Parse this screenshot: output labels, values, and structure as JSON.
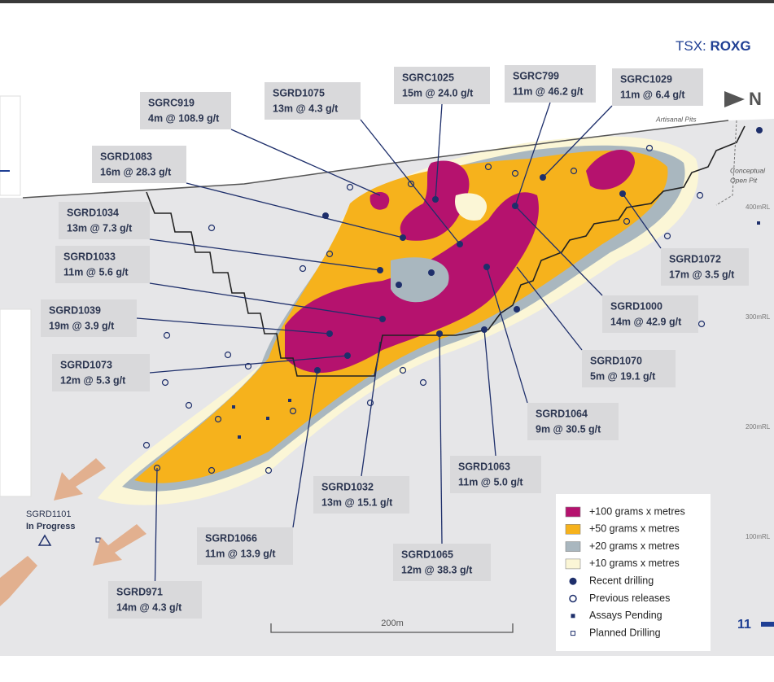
{
  "header": {
    "exchange": "TSX:",
    "ticker": "ROXG"
  },
  "north": "N",
  "annotations": {
    "pits": "Artisanal Pits",
    "open_pit": [
      "Conceptual",
      "Open Pit"
    ],
    "elevations": [
      "400mRL",
      "300mRL",
      "200mRL",
      "100mRL"
    ]
  },
  "in_progress": {
    "hole": "SGRD1101",
    "status": "In Progress"
  },
  "callouts": [
    {
      "hole": "SGRC919",
      "intercept": "4m @ 108.9 g/t"
    },
    {
      "hole": "SGRD1075",
      "intercept": "13m @ 4.3 g/t"
    },
    {
      "hole": "SGRC1025",
      "intercept": "15m @ 24.0 g/t"
    },
    {
      "hole": "SGRC799",
      "intercept": "11m @ 46.2 g/t"
    },
    {
      "hole": "SGRC1029",
      "intercept": "11m @ 6.4 g/t"
    },
    {
      "hole": "SGRD1083",
      "intercept": "16m @ 28.3 g/t"
    },
    {
      "hole": "SGRD1034",
      "intercept": "13m @ 7.3 g/t"
    },
    {
      "hole": "SGRD1033",
      "intercept": "11m @ 5.6 g/t"
    },
    {
      "hole": "SGRD1039",
      "intercept": "19m @ 3.9 g/t"
    },
    {
      "hole": "SGRD1073",
      "intercept": "12m @ 5.3 g/t"
    },
    {
      "hole": "SGRD1072",
      "intercept": "17m @ 3.5 g/t"
    },
    {
      "hole": "SGRD1000",
      "intercept": "14m @ 42.9 g/t"
    },
    {
      "hole": "SGRD1070",
      "intercept": "5m @ 19.1 g/t"
    },
    {
      "hole": "SGRD1064",
      "intercept": "9m @ 30.5 g/t"
    },
    {
      "hole": "SGRD1063",
      "intercept": "11m @ 5.0 g/t"
    },
    {
      "hole": "SGRD1032",
      "intercept": "13m @ 15.1 g/t"
    },
    {
      "hole": "SGRD1065",
      "intercept": "12m @ 38.3 g/t"
    },
    {
      "hole": "SGRD1066",
      "intercept": "11m @ 13.9 g/t"
    },
    {
      "hole": "SGRD971",
      "intercept": "14m @ 4.3 g/t"
    }
  ],
  "legend": [
    "+100 grams x metres",
    "+50 grams x metres",
    "+20 grams x metres",
    "+10 grams x metres",
    "Recent drilling",
    "Previous releases",
    "Assays Pending",
    "Planned Drilling"
  ],
  "scale": "200m",
  "page": "11"
}
